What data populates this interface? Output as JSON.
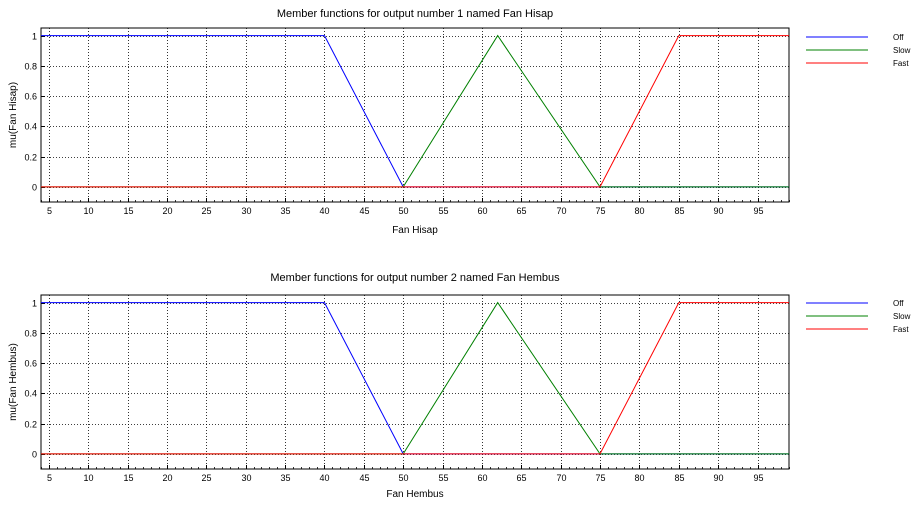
{
  "chart_data": [
    {
      "type": "line",
      "title": "Member functions for output number 1 named Fan Hisap",
      "xlabel": "Fan Hisap",
      "ylabel": "mu(Fan Hisap)",
      "xlim": [
        4,
        99
      ],
      "ylim": [
        -0.1,
        1.05
      ],
      "xticks": [
        5,
        10,
        15,
        20,
        25,
        30,
        35,
        40,
        45,
        50,
        55,
        60,
        65,
        70,
        75,
        80,
        85,
        90,
        95
      ],
      "yticks": [
        0,
        0.2,
        0.4,
        0.6,
        0.8,
        1
      ],
      "ytick_labels": [
        "0",
        "0.2",
        "0.4",
        "0.6",
        "0.8",
        "1"
      ],
      "grid": true,
      "legend_position": "right",
      "series": [
        {
          "name": "Off",
          "color": "#0000ff",
          "x": [
            4,
            40,
            50,
            99
          ],
          "y": [
            1,
            1,
            0,
            0
          ]
        },
        {
          "name": "Slow",
          "color": "#008000",
          "x": [
            4,
            50,
            62,
            75,
            99
          ],
          "y": [
            0,
            0,
            1,
            0,
            0
          ]
        },
        {
          "name": "Fast",
          "color": "#ff0000",
          "x": [
            4,
            75,
            85,
            99
          ],
          "y": [
            0,
            0,
            1,
            1
          ]
        }
      ]
    },
    {
      "type": "line",
      "title": "Member functions for output number 2 named Fan Hembus",
      "xlabel": "Fan Hembus",
      "ylabel": "mu(Fan Hembus)",
      "xlim": [
        4,
        99
      ],
      "ylim": [
        -0.1,
        1.05
      ],
      "xticks": [
        5,
        10,
        15,
        20,
        25,
        30,
        35,
        40,
        45,
        50,
        55,
        60,
        65,
        70,
        75,
        80,
        85,
        90,
        95
      ],
      "yticks": [
        0,
        0.2,
        0.4,
        0.6,
        0.8,
        1
      ],
      "ytick_labels": [
        "0",
        "0.2",
        "0.4",
        "0.6",
        "0.8",
        "1"
      ],
      "grid": true,
      "legend_position": "right",
      "series": [
        {
          "name": "Off",
          "color": "#0000ff",
          "x": [
            4,
            40,
            50,
            99
          ],
          "y": [
            1,
            1,
            0,
            0
          ]
        },
        {
          "name": "Slow",
          "color": "#008000",
          "x": [
            4,
            50,
            62,
            75,
            99
          ],
          "y": [
            0,
            0,
            1,
            0,
            0
          ]
        },
        {
          "name": "Fast",
          "color": "#ff0000",
          "x": [
            4,
            75,
            85,
            99
          ],
          "y": [
            0,
            0,
            1,
            1
          ]
        }
      ]
    }
  ]
}
